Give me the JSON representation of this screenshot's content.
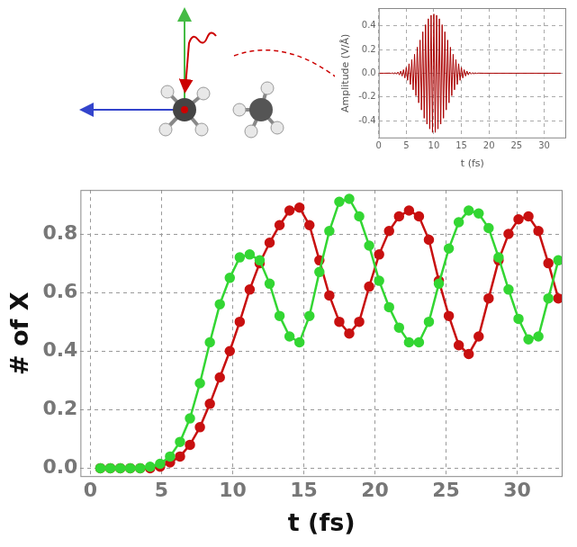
{
  "chart_data": [
    {
      "type": "line",
      "x_label": "t (fs)",
      "y_label": "Amplitude (V/Å)",
      "x": [
        0,
        1,
        2,
        2.25,
        2.5,
        2.75,
        3,
        3.25,
        3.5,
        3.75,
        4,
        4.25,
        4.5,
        4.75,
        5,
        5.25,
        5.5,
        5.75,
        6,
        6.25,
        6.5,
        6.75,
        7,
        7.25,
        7.5,
        7.75,
        8,
        8.25,
        8.5,
        8.75,
        9,
        9.25,
        9.5,
        9.75,
        10,
        10.25,
        10.5,
        10.75,
        11,
        11.25,
        11.5,
        11.75,
        12,
        12.25,
        12.5,
        12.75,
        13,
        13.25,
        13.5,
        13.75,
        14,
        14.25,
        14.5,
        14.75,
        15,
        15.25,
        15.5,
        15.75,
        16,
        16.25,
        16.5,
        16.75,
        17,
        17.25,
        17.5,
        17.75,
        18,
        19,
        33
      ],
      "series": [
        {
          "color": "#aa0000",
          "marker": "none",
          "line_style": "solid",
          "values": [
            0,
            0,
            0.001,
            -0.002,
            0.003,
            -0.004,
            0.005,
            -0.007,
            0.01,
            -0.014,
            0.018,
            -0.024,
            0.03,
            -0.04,
            0.05,
            -0.06,
            0.08,
            -0.095,
            0.115,
            -0.14,
            0.16,
            -0.19,
            0.22,
            -0.25,
            0.28,
            -0.31,
            0.35,
            -0.38,
            0.41,
            -0.43,
            0.46,
            -0.47,
            0.49,
            -0.5,
            0.5,
            -0.5,
            0.49,
            -0.47,
            0.46,
            -0.43,
            0.41,
            -0.38,
            0.35,
            -0.31,
            0.28,
            -0.25,
            0.22,
            -0.19,
            0.16,
            -0.14,
            0.115,
            -0.095,
            0.08,
            -0.06,
            0.05,
            -0.04,
            0.03,
            -0.024,
            0.018,
            -0.014,
            0.01,
            -0.007,
            0.005,
            -0.004,
            0.003,
            -0.002,
            0.001,
            0,
            0
          ]
        }
      ],
      "xlim": [
        0,
        34
      ],
      "xticks": [
        0,
        5,
        10,
        15,
        20,
        25,
        30
      ],
      "ylim": [
        -0.55,
        0.55
      ],
      "yticks": [
        -0.4,
        -0.2,
        {
          "value": 0,
          "label": "0.0"
        },
        0.2,
        0.4
      ],
      "grid": true
    },
    {
      "type": "line",
      "x_label": "t (fs)",
      "y_label": "# of X",
      "x": [
        0.7,
        1.4,
        2.1,
        2.8,
        3.5,
        4.2,
        4.9,
        5.6,
        6.3,
        7.0,
        7.7,
        8.4,
        9.1,
        9.8,
        10.5,
        11.2,
        11.9,
        12.6,
        13.3,
        14.0,
        14.7,
        15.4,
        16.1,
        16.8,
        17.5,
        18.2,
        18.9,
        19.6,
        20.3,
        21.0,
        21.7,
        22.4,
        23.1,
        23.8,
        24.5,
        25.2,
        25.9,
        26.6,
        27.3,
        28.0,
        28.7,
        29.4,
        30.1,
        30.8,
        31.5,
        32.2,
        32.9
      ],
      "series": [
        {
          "color": "#33d633",
          "marker": "circle",
          "line_style": "solid",
          "values": [
            0,
            0,
            0,
            0,
            0,
            0.005,
            0.015,
            0.04,
            0.09,
            0.17,
            0.29,
            0.43,
            0.56,
            0.65,
            0.72,
            0.73,
            0.71,
            0.63,
            0.52,
            0.45,
            0.43,
            0.52,
            0.67,
            0.81,
            0.91,
            0.92,
            0.86,
            0.76,
            0.64,
            0.55,
            0.48,
            0.43,
            0.43,
            0.5,
            0.63,
            0.75,
            0.84,
            0.88,
            0.87,
            0.82,
            0.72,
            0.61,
            0.51,
            0.44,
            0.45,
            0.58,
            0.71
          ]
        },
        {
          "color": "#c81010",
          "marker": "circle",
          "line_style": "solid",
          "values": [
            0,
            0,
            0,
            0,
            0,
            0,
            0.005,
            0.02,
            0.04,
            0.08,
            0.14,
            0.22,
            0.31,
            0.4,
            0.5,
            0.61,
            0.7,
            0.77,
            0.83,
            0.88,
            0.89,
            0.83,
            0.71,
            0.59,
            0.5,
            0.46,
            0.5,
            0.62,
            0.73,
            0.81,
            0.86,
            0.88,
            0.86,
            0.78,
            0.64,
            0.52,
            0.42,
            0.39,
            0.45,
            0.58,
            0.71,
            0.8,
            0.85,
            0.86,
            0.81,
            0.7,
            0.58
          ]
        }
      ],
      "xlim": [
        -0.7,
        33.2
      ],
      "xticks": [
        0,
        5,
        10,
        15,
        20,
        25,
        30
      ],
      "ylim": [
        -0.03,
        0.95
      ],
      "yticks": [
        {
          "value": 0,
          "label": "0.0"
        },
        0.2,
        0.4,
        0.6,
        0.8
      ],
      "grid": true
    }
  ]
}
